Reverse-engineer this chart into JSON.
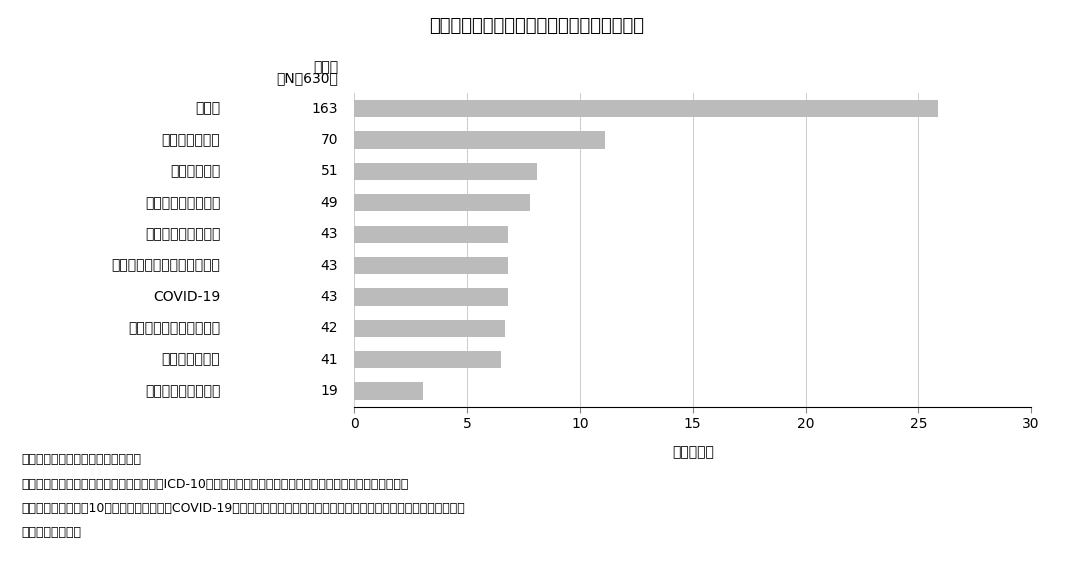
{
  "title": "図４　研究の対象となった疾患（参考情報）",
  "categories": [
    "眼及び付属器の疾患",
    "呼吸器系の疾患",
    "皮膚及び皮下組織の疾患",
    "COVID-19",
    "筋骨格系及び結合組織の疾患",
    "感染症及び寄生虫症",
    "精神及び行動の障害",
    "神経系の疾患",
    "循環器系の疾患",
    "新生物"
  ],
  "counts": [
    19,
    41,
    42,
    43,
    43,
    43,
    49,
    51,
    70,
    163
  ],
  "values": [
    3.02,
    6.51,
    6.67,
    6.83,
    6.83,
    6.83,
    7.78,
    8.1,
    11.11,
    25.87
  ],
  "bar_color": "#bbbbbb",
  "bar_edge_color": "#bbbbbb",
  "bg_color": "#ffffff",
  "xlabel": "割合（％）",
  "xlim": [
    0,
    30
  ],
  "xticks": [
    0,
    5,
    10,
    15,
    20,
    25,
    30
  ],
  "header_line1": "論文数",
  "header_line2": "（N＝630）",
  "footer_lines": [
    "出所：医薬産業政策研究所にて作成",
    "　　　研究で主として扱われている疾患をICD-10の疾患分類を用いて分類し、章分類の単位で集計を行った。",
    "　　　頻度数の上位10疾患分類を示した。COVID-19は特殊目的用コードが使用されているため、他の疾患と独立して集計",
    "　　　を行った。"
  ],
  "grid_color": "#cccccc",
  "title_fontsize": 13,
  "label_fontsize": 10,
  "tick_fontsize": 10,
  "footer_fontsize": 9,
  "count_label_fontsize": 10,
  "header_fontsize": 10
}
